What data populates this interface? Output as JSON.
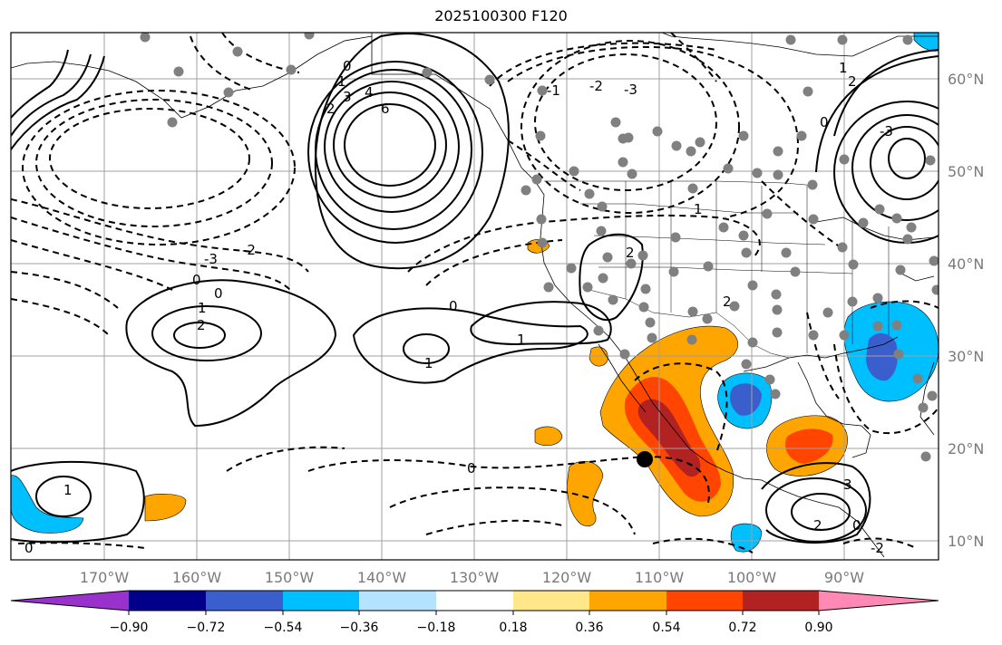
{
  "title": "2025100300 F120",
  "map": {
    "lat_labels": [
      "60°N",
      "50°N",
      "40°N",
      "30°N",
      "20°N",
      "10°N"
    ],
    "lon_labels": [
      "170°W",
      "160°W",
      "150°W",
      "140°W",
      "130°W",
      "120°W",
      "110°W",
      "100°W",
      "90°W"
    ],
    "contour_labels": [
      "6",
      "4",
      "3",
      "2",
      "1",
      "0",
      "-1",
      "-2",
      "-3",
      "1",
      "0",
      "2",
      "1",
      "0",
      "1",
      "2",
      "3",
      "0",
      "1",
      "0",
      "2",
      "-3",
      "2",
      "1",
      "0",
      "-3",
      "-2",
      "0",
      "0",
      "1",
      "2",
      "-2"
    ],
    "colors": {
      "positive_shades": [
        "#ffe78a",
        "#ffa500",
        "#ff4500",
        "#b22222",
        "#ff88b4"
      ],
      "negative_shades": [
        "#b3e3ff",
        "#00bfff",
        "#3a5fcd",
        "#00008b",
        "#9932cc"
      ],
      "station_marker": "#808080",
      "highlight_marker": "#000000"
    }
  },
  "colorbar": {
    "tick_labels": [
      "−0.90",
      "−0.72",
      "−0.54",
      "−0.36",
      "−0.18",
      "0.18",
      "0.36",
      "0.54",
      "0.72",
      "0.90"
    ],
    "colors": [
      "#9932cc",
      "#00008b",
      "#3a5fcd",
      "#00bfff",
      "#b3e3ff",
      "#ffffff",
      "#ffe78a",
      "#ffa500",
      "#ff4500",
      "#b22222",
      "#ff88b4"
    ]
  }
}
